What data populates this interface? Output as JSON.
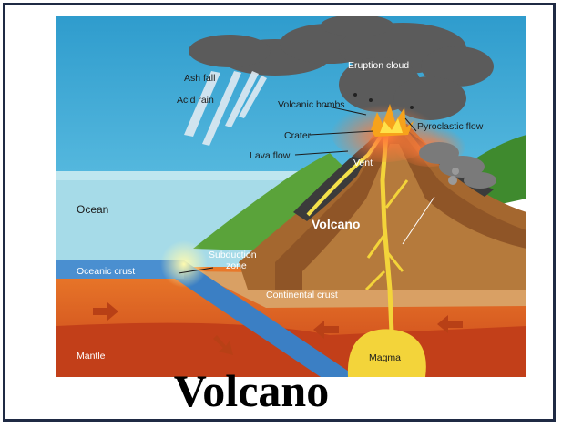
{
  "caption": "Volcano",
  "labels": {
    "eruption_cloud": "Eruption cloud",
    "ash_fall": "Ash fall",
    "acid_rain": "Acid rain",
    "volcanic_bombs": "Volcanic bombs",
    "crater": "Crater",
    "pyroclastic_flow": "Pyroclastic flow",
    "lava_flow": "Lava flow",
    "vent": "Vent",
    "ocean": "Ocean",
    "volcano": "Volcano",
    "subduction_zone_line1": "Subduction",
    "subduction_zone_line2": "zone",
    "oceanic_crust": "Oceanic crust",
    "continental_crust": "Continental crust",
    "mantle": "Mantle",
    "magma": "Magma"
  },
  "colors": {
    "sky": "#3aa7d6",
    "ocean": "#a6dbe8",
    "mantle": "#d9541c",
    "volcano_brown": "#9a5f2f",
    "magma": "#f3d43a",
    "cloud": "#5b5b5b",
    "border": "#1f2a44"
  }
}
